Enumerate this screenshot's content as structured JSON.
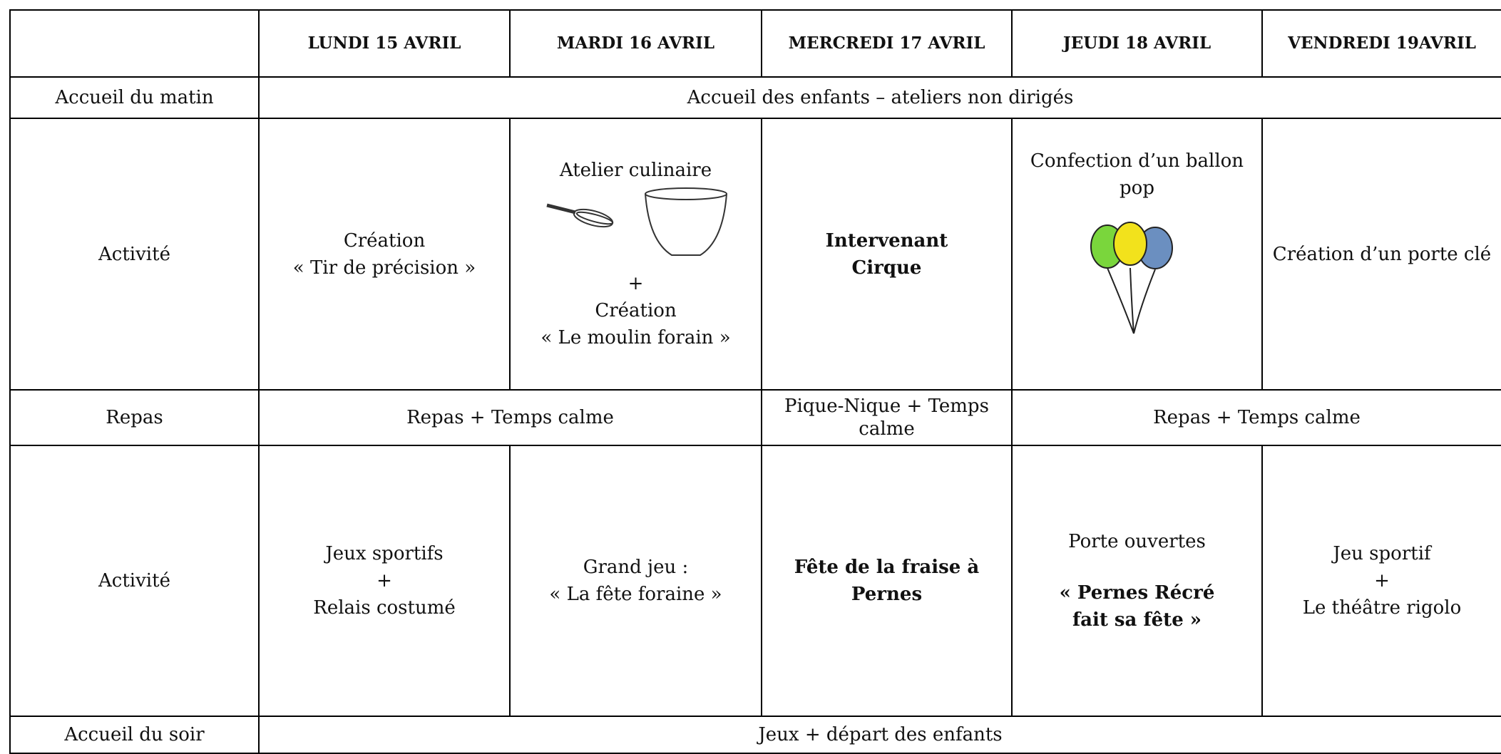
{
  "header": {
    "days": [
      "LUNDI 15 AVRIL",
      "MARDI 16 AVRIL",
      "MERCREDI 17 AVRIL",
      "JEUDI 18 AVRIL",
      "VENDREDI 19AVRIL"
    ]
  },
  "rows": [
    {
      "label": "Accueil du matin",
      "cells": [
        [
          "Accueil des enfants – ateliers non dirigés"
        ]
      ]
    },
    {
      "label": "Activité",
      "cells": [
        [
          "Création",
          "« Tir de précision »"
        ],
        [
          "Atelier culinaire",
          "+",
          "Création",
          "« Le moulin forain »"
        ],
        [
          "Intervenant",
          "Cirque"
        ],
        [
          "Confection d’un ballon pop"
        ],
        [
          "Création d’un porte clé"
        ]
      ]
    },
    {
      "label": "Repas",
      "cells": [
        [
          "Repas + Temps calme"
        ],
        [
          "Pique-Nique + Temps calme"
        ],
        [
          "Repas + Temps calme"
        ]
      ]
    },
    {
      "label": "Activité",
      "cells": [
        [
          "Jeux sportifs",
          "+",
          "Relais costumé"
        ],
        [
          "Grand jeu :",
          "« La fête foraine »"
        ],
        [
          "Fête de la fraise à Pernes"
        ],
        [
          "Porte ouvertes",
          "« Pernes Récré fait sa fête »"
        ],
        [
          "Jeu sportif",
          "+",
          "Le théâtre rigolo"
        ]
      ]
    },
    {
      "label": "Accueil du soir",
      "cells": [
        [
          "Jeux + départ des enfants"
        ]
      ]
    }
  ]
}
